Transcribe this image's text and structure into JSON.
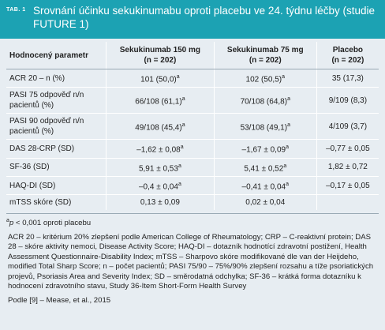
{
  "header": {
    "label": "TAB. 1",
    "title": "Srovnání účinku sekukinumabu oproti placebu ve 24. týdnu léčby (studie FUTURE 1)"
  },
  "table": {
    "columns": [
      {
        "name": "Hodnocený parametr"
      },
      {
        "name": "Sekukinumab 150 mg",
        "n": "(n = 202)"
      },
      {
        "name": "Sekukinumab 75 mg",
        "n": "(n = 202)"
      },
      {
        "name": "Placebo",
        "n": "(n = 202)"
      }
    ],
    "rows": [
      [
        {
          "text": "ACR 20 – n (%)"
        },
        {
          "text": "101 (50,0)",
          "sup": "a"
        },
        {
          "text": "102 (50,5)",
          "sup": "a"
        },
        {
          "text": "35 (17,3)"
        }
      ],
      [
        {
          "text": "PASI 75 odpověď n/n pacientů (%)"
        },
        {
          "text": "66/108 (61,1)",
          "sup": "a"
        },
        {
          "text": "70/108 (64,8)",
          "sup": "a"
        },
        {
          "text": "9/109 (8,3)"
        }
      ],
      [
        {
          "text": "PASI 90 odpověď n/n pacientů (%)"
        },
        {
          "text": "49/108 (45,4)",
          "sup": "a"
        },
        {
          "text": "53/108 (49,1)",
          "sup": "a"
        },
        {
          "text": "4/109 (3,7)"
        }
      ],
      [
        {
          "text": "DAS 28-CRP (SD)"
        },
        {
          "text": "–1,62 ± 0,08",
          "sup": "a"
        },
        {
          "text": "–1,67 ± 0,09",
          "sup": "a"
        },
        {
          "text": "–0,77 ± 0,05"
        }
      ],
      [
        {
          "text": "SF-36 (SD)"
        },
        {
          "text": "5,91 ± 0,53",
          "sup": "a"
        },
        {
          "text": "5,41 ± 0,52",
          "sup": "a"
        },
        {
          "text": "1,82 ± 0,72"
        }
      ],
      [
        {
          "text": "HAQ-DI (SD)"
        },
        {
          "text": "–0,4 ± 0,04",
          "sup": "a"
        },
        {
          "text": "–0,41 ± 0,04",
          "sup": "a"
        },
        {
          "text": "–0,17 ± 0,05"
        }
      ],
      [
        {
          "text": "mTSS skóre (SD)"
        },
        {
          "text": "0,13 ± 0,09"
        },
        {
          "text": "0,02 ± 0,04"
        },
        {}
      ]
    ]
  },
  "footnote": {
    "mark": "a",
    "p": "p",
    "text": "< 0,001 oproti placebu"
  },
  "abbreviations": "ACR 20 – kritérium 20% zlepšení podle American College of Rheumatology; CRP – C-reaktivní protein; DAS 28 – skóre aktivity nemoci, Disease Activity Score; HAQ-DI – dotazník hodnotící zdravotní postižení, Health Assessment Questionnaire-Disability Index; mTSS – Sharpovo skóre modifikované dle van der Heijdeho, modified Total Sharp Score; n – počet pacientů; PASI 75/90 – 75%/90% zlepšení rozsahu a tíže psoriatických projevů, Psoriasis Area and Severity Index; SD – směrodatná odchylka; SF-36 – krátká forma dotazníku k hodnocení zdravotního stavu, Study 36-Item Short-Form Health Survey",
  "source": "Podle [9] – Mease, et al., 2015"
}
